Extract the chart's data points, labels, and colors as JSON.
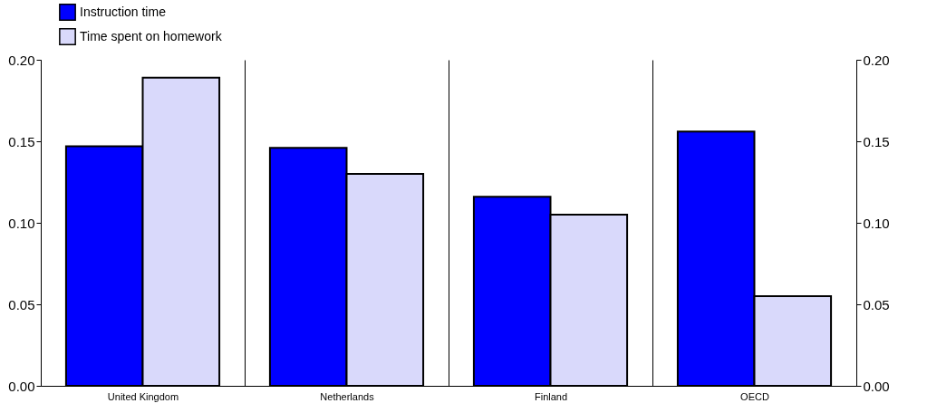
{
  "chart_data": {
    "type": "bar",
    "categories": [
      "United Kingdom",
      "Netherlands",
      "Finland",
      "OECD"
    ],
    "series": [
      {
        "name": "Instruction time",
        "color": "#0000ff",
        "values": [
          0.147,
          0.146,
          0.116,
          0.156
        ]
      },
      {
        "name": "Time spent on homework",
        "color": "#d9d9fb",
        "values": [
          0.189,
          0.13,
          0.105,
          0.055
        ]
      }
    ],
    "ylim": [
      0,
      0.2
    ],
    "yticks": [
      {
        "value": 0,
        "label": "0.00"
      },
      {
        "value": 0.05,
        "label": "0.05"
      },
      {
        "value": 0.1,
        "label": "0.10"
      },
      {
        "value": 0.15,
        "label": "0.15"
      },
      {
        "value": 0.2,
        "label": "0.20"
      }
    ],
    "y2lim": [
      0,
      0.2
    ],
    "y2ticks": [
      {
        "value": 0,
        "label": "0.00"
      },
      {
        "value": 0.05,
        "label": "0.05"
      },
      {
        "value": 0.1,
        "label": "0.10"
      },
      {
        "value": 0.15,
        "label": "0.15"
      },
      {
        "value": 0.2,
        "label": "0.20"
      }
    ],
    "grid": "x",
    "legend": "top left"
  }
}
